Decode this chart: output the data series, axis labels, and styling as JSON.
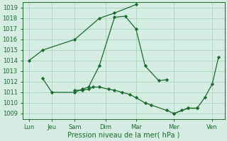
{
  "background_color": "#d5ede3",
  "grid_color": "#aad4c0",
  "line_color": "#1a6b2a",
  "xlabel": "Pression niveau de la mer( hPa )",
  "xlabel_fontsize": 7,
  "tick_fontsize": 6,
  "ylim": [
    1008.5,
    1019.5
  ],
  "yticks": [
    1009,
    1010,
    1011,
    1012,
    1013,
    1014,
    1015,
    1016,
    1017,
    1018,
    1019
  ],
  "x_labels": [
    "Lun",
    "Jeu",
    "Sam",
    "Dim",
    "Mar",
    "Mer",
    "Ven"
  ],
  "x_tick_pos": [
    0,
    0.75,
    1.5,
    2.5,
    3.5,
    4.75,
    6.0
  ],
  "xlim": [
    -0.2,
    6.4
  ],
  "series_x": [
    [
      0.0,
      0.45,
      1.5,
      2.3,
      2.8,
      3.5
    ],
    [
      0.45,
      0.75,
      1.5,
      1.75,
      1.95,
      2.3,
      2.8,
      3.15,
      3.5,
      3.8,
      4.25,
      4.5
    ],
    [
      1.5,
      1.75,
      1.95,
      2.1,
      2.3,
      2.6,
      2.8,
      3.05,
      3.3,
      3.5,
      3.8,
      4.0,
      4.5,
      4.75,
      5.2,
      5.5
    ],
    [
      4.75,
      5.0,
      5.2,
      5.5,
      5.75,
      6.0,
      6.2
    ]
  ],
  "series_y": [
    [
      1014.0,
      1015.0,
      1016.0,
      1018.0,
      1018.5,
      1019.3
    ],
    [
      1012.3,
      1011.0,
      1011.0,
      1011.3,
      1011.5,
      1013.5,
      1018.1,
      1018.2,
      1017.0,
      1013.5,
      1012.1,
      1012.2
    ],
    [
      1011.2,
      1011.2,
      1011.3,
      1011.5,
      1011.5,
      1011.3,
      1011.2,
      1011.0,
      1010.8,
      1010.5,
      1010.0,
      1009.8,
      1009.3,
      1009.0,
      1009.5,
      1009.5
    ],
    [
      1009.0,
      1009.3,
      1009.5,
      1009.5,
      1010.5,
      1011.8,
      1014.3
    ]
  ]
}
